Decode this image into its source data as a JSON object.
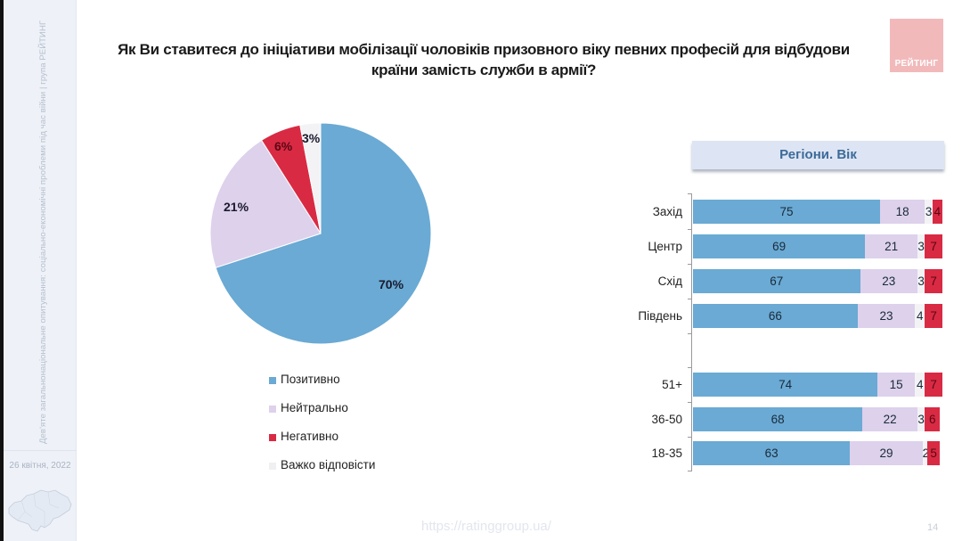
{
  "sidebar": {
    "vertical_text": "Дев'яте загальнонаціональне опитування: соціально-економічні проблеми під час війни | група РЕЙТИНГ",
    "date": "26 квітня, 2022"
  },
  "title": {
    "line1": "Як Ви ставитеся до ініціативи мобілізації чоловіків призовного віку певних професій для відбудови",
    "line2": "країни замість служби в армії?"
  },
  "logo": {
    "text": "РЕЙТИНГ",
    "color": "#f2b9bb"
  },
  "colors": {
    "positive": "#6aaad4",
    "neutral": "#ddd1ec",
    "negative": "#d92a44",
    "hard_to_say": "#f3f3f5"
  },
  "legend": [
    {
      "label": "Позитивно",
      "color": "#6aaad4"
    },
    {
      "label": "Нейтрально",
      "color": "#ddd1ec"
    },
    {
      "label": "Негативно",
      "color": "#d92a44"
    },
    {
      "label": "Важко відповісти",
      "color": "#f3f3f5"
    }
  ],
  "panel_header": "Регіони. Вік",
  "footer": {
    "url": "https://ratinggroup.ua/",
    "page": "14"
  },
  "chart_data": [
    {
      "type": "pie",
      "title": "Як Ви ставитеся до ініціативи мобілізації чоловіків призовного віку певних професій для відбудови країни замість служби в армії?",
      "categories": [
        "Позитивно",
        "Нейтрально",
        "Негативно",
        "Важко відповісти"
      ],
      "values": [
        70,
        21,
        6,
        3
      ],
      "labels": [
        "70%",
        "21%",
        "6%",
        "3%"
      ],
      "colors": [
        "#6aaad4",
        "#ddd1ec",
        "#d92a44",
        "#f3f3f5"
      ],
      "legend_position": "bottom"
    },
    {
      "type": "bar",
      "orientation": "horizontal",
      "stacked": true,
      "title": "Регіони. Вік",
      "categories": [
        "Захід",
        "Центр",
        "Схід",
        "Південь",
        "51+",
        "36-50",
        "18-35"
      ],
      "groups": [
        {
          "name": "Регіони",
          "categories": [
            "Захід",
            "Центр",
            "Схід",
            "Південь"
          ]
        },
        {
          "name": "Вік",
          "categories": [
            "51+",
            "36-50",
            "18-35"
          ]
        }
      ],
      "series": [
        {
          "name": "Позитивно",
          "values": [
            75,
            69,
            67,
            66,
            74,
            68,
            63
          ],
          "color": "#6aaad4"
        },
        {
          "name": "Нейтрально",
          "values": [
            18,
            21,
            23,
            23,
            15,
            22,
            29
          ],
          "color": "#ddd1ec"
        },
        {
          "name": "Важко відповісти",
          "values": [
            3,
            3,
            3,
            4,
            4,
            3,
            2
          ],
          "color": "#f3f3f5"
        },
        {
          "name": "Негативно",
          "values": [
            4,
            7,
            7,
            7,
            7,
            6,
            5
          ],
          "color": "#d92a44"
        }
      ],
      "xlim": [
        0,
        100
      ],
      "grid": false
    }
  ]
}
